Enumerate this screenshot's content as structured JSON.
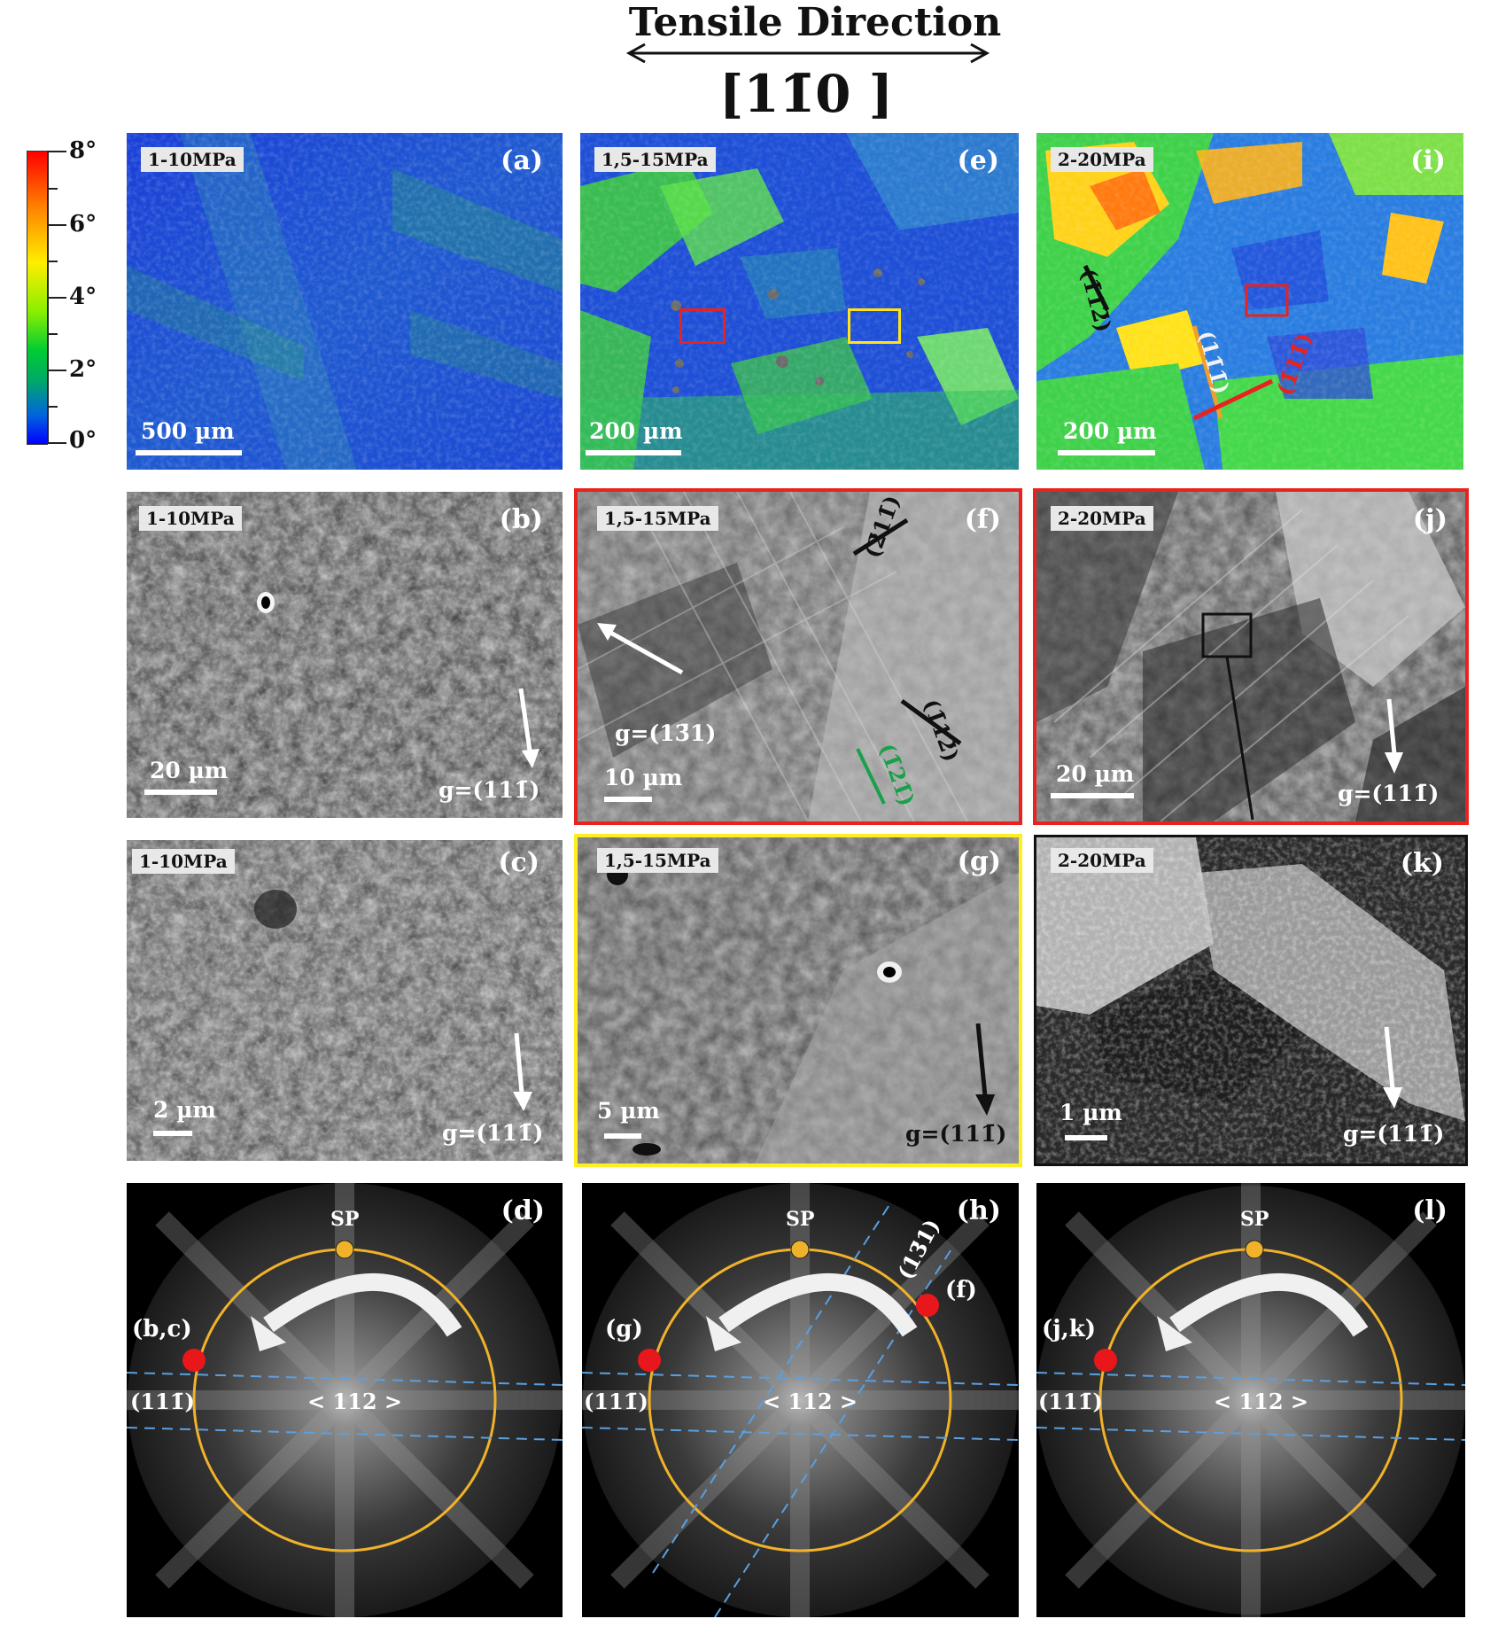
{
  "header": {
    "title": "Tensile Direction",
    "direction": "[11̄0 ]"
  },
  "colorbar": {
    "labels": [
      "8°",
      "6°",
      "4°",
      "2°",
      "0°"
    ],
    "colors": [
      "#ff0000",
      "#ffee00",
      "#00cc33",
      "#0000ff"
    ]
  },
  "panels": {
    "a": {
      "letter": "(a)",
      "stress": "1-10MPa",
      "scale": "500 µm"
    },
    "e": {
      "letter": "(e)",
      "stress": "1,5-15MPa",
      "scale": "200 µm"
    },
    "i": {
      "letter": "(i)",
      "stress": "2-20MPa",
      "scale": "200 µm",
      "planes": [
        "(1̄12̄)",
        "(11̄1̄)",
        "(1̄11̄)"
      ]
    },
    "b": {
      "letter": "(b)",
      "stress": "1-10MPa",
      "scale": "20 µm",
      "g": "g=(111̄)"
    },
    "f": {
      "letter": "(f)",
      "stress": "1,5-15MPa",
      "scale": "10 µm",
      "g": "g=(13̄1)",
      "planes": [
        "(2̄11̄)",
        "(1̄12̄)",
        "(1̄21̄)"
      ]
    },
    "j": {
      "letter": "(j)",
      "stress": "2-20MPa",
      "scale": "20 µm",
      "g": "g=(111̄)"
    },
    "c": {
      "letter": "(c)",
      "stress": "1-10MPa",
      "scale": "2 µm",
      "g": "g=(111̄)"
    },
    "g": {
      "letter": "(g)",
      "stress": "1,5-15MPa",
      "scale": "5 µm",
      "g": "g=(111̄)"
    },
    "k": {
      "letter": "(k)",
      "stress": "2-20MPa",
      "scale": "1 µm",
      "g": "g=(111̄)"
    },
    "d": {
      "letter": "(d)",
      "sp": "SP",
      "pole": "< 112 >",
      "spot": "(b,c)",
      "plane": "(111̄)"
    },
    "h": {
      "letter": "(h)",
      "sp": "SP",
      "pole": "< 112 >",
      "spot": "(g)",
      "spot2": "(f)",
      "plane": "(111̄)",
      "plane2": "(13̄1)"
    },
    "l": {
      "letter": "(l)",
      "sp": "SP",
      "pole": "< 112 >",
      "spot": "(j,k)",
      "plane": "(111̄)"
    }
  }
}
